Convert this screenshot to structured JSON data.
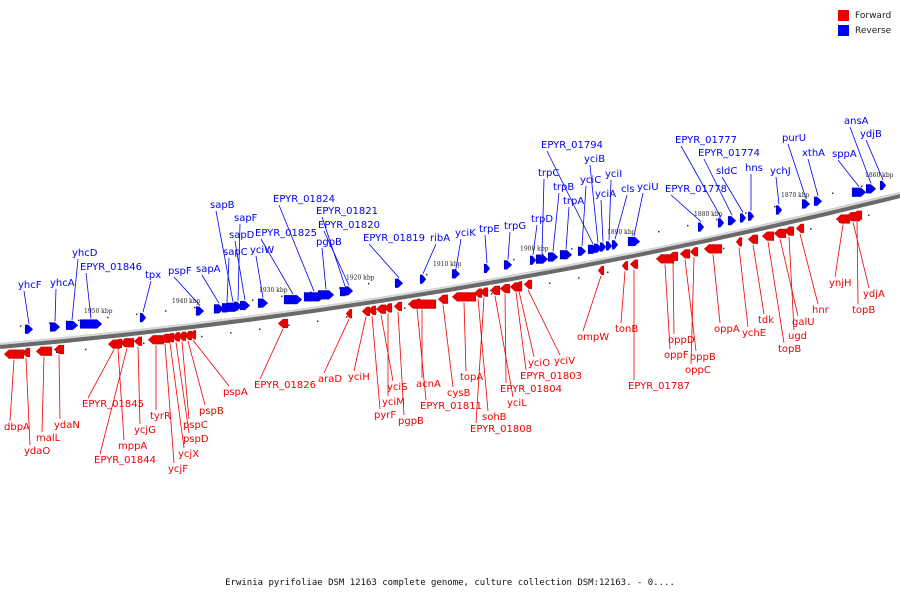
{
  "legend": {
    "items": [
      {
        "label": "Forward",
        "color": "#ee0000"
      },
      {
        "label": "Reverse",
        "color": "#0000ee"
      }
    ]
  },
  "caption": "Erwinia pyrifoliae DSM 12163 complete genome, culture collection DSM:12163. - 0....",
  "ticks": [
    "1960 kbp",
    "1950 kbp",
    "1940 kbp",
    "1930 kbp",
    "1920 kbp",
    "1910 kbp",
    "1900 kbp",
    "1890 kbp",
    "1880 kbp",
    "1870 kbp",
    "1860 kbp"
  ],
  "reverse_genes": [
    "yhcF",
    "yhcA",
    "yhcD",
    "EPYR_01846",
    "tpx",
    "pspF",
    "sapA",
    "sapC",
    "sapB",
    "sapF",
    "sapD",
    "yciW",
    "EPYR_01825",
    "EPYR_01824",
    "pgpB",
    "EPYR_01821",
    "EPYR_01820",
    "EPYR_01819",
    "ribA",
    "yciK",
    "trpE",
    "trpG",
    "trpD",
    "trpC",
    "trpB",
    "trpA",
    "yciC",
    "EPYR_01794",
    "yciB",
    "yciA",
    "yciI",
    "cls",
    "yciU",
    "EPYR_01778",
    "EPYR_01777",
    "EPYR_01774",
    "sldC",
    "hns",
    "ychJ",
    "purU",
    "xthA",
    "sppA",
    "ansA",
    "ydjB"
  ],
  "forward_genes": [
    "dbpA",
    "ydaO",
    "malL",
    "ydaN",
    "EPYR_01845",
    "mppA",
    "EPYR_01844",
    "ycjG",
    "tyrR",
    "ycjF",
    "ycjX",
    "pspD",
    "pspC",
    "pspB",
    "pspA",
    "EPYR_01826",
    "araD",
    "yciH",
    "pyrF",
    "yciS",
    "yciM",
    "pgpB",
    "acnA",
    "EPYR_01811",
    "cysB",
    "topA",
    "sohB",
    "EPYR_01808",
    "yciL",
    "EPYR_01804",
    "EPYR_01803",
    "yciO",
    "yciV",
    "ompW",
    "tonB",
    "EPYR_01787",
    "oppF",
    "oppD",
    "oppB",
    "oppC",
    "oppA",
    "ychE",
    "tdk",
    "topB",
    "galU",
    "ugd",
    "hnr",
    "ynjH",
    "ydjA",
    "topB"
  ]
}
